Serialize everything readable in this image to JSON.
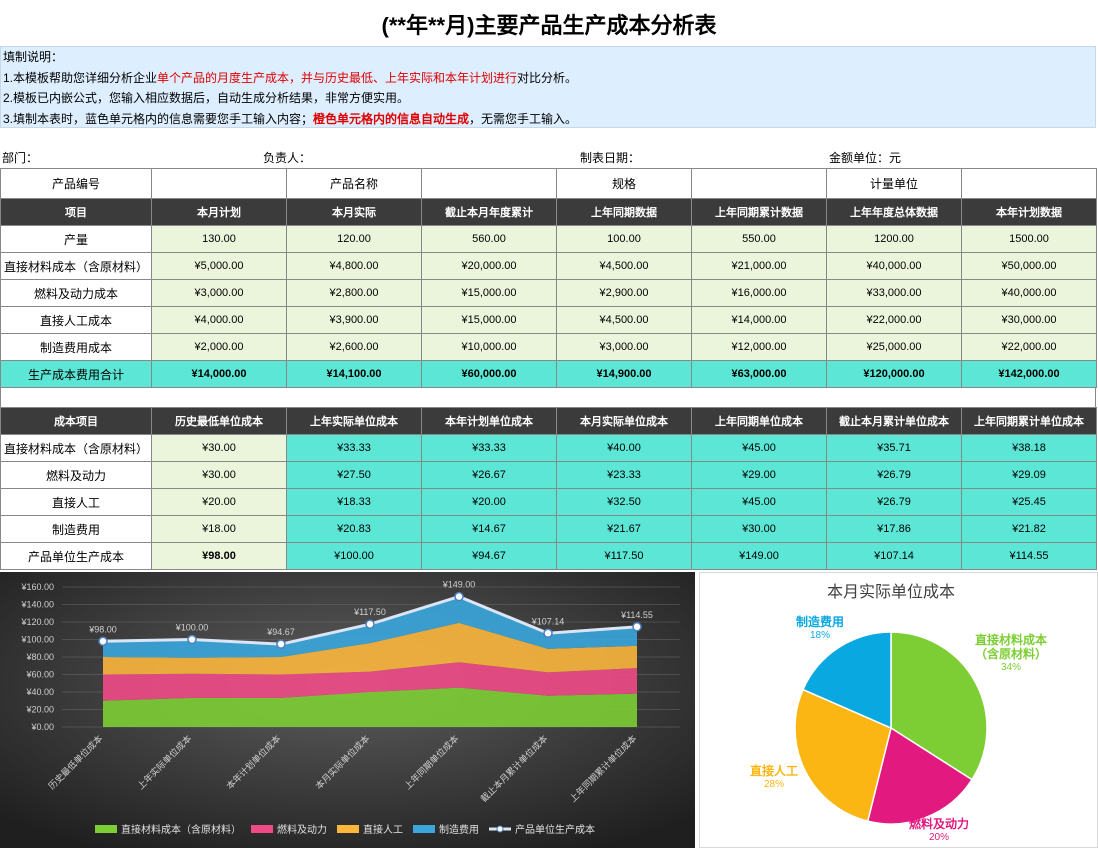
{
  "title": "(**年**月)主要产品生产成本分析表",
  "notes": {
    "heading": "填制说明：",
    "lines": [
      [
        {
          "text": "1.本模板帮助您详细分析企业"
        },
        {
          "text": "单个产品的月度生产成本，并与历史最低、上年实际和本年计划进行",
          "color": "#e00000"
        },
        {
          "text": "对比分析。"
        }
      ],
      [
        {
          "text": "2.模板已内嵌公式，您输入相应数据后，自动生成分析结果，非常方便实用。"
        }
      ],
      [
        {
          "text": "3.填制本表时，蓝色单元格内的信息需要您手工输入内容；"
        },
        {
          "text": "橙色单元格内的信息自动生成",
          "color": "#e00000",
          "bold": true
        },
        {
          "text": "，无需您手工输入。"
        }
      ]
    ]
  },
  "info": [
    "部门：",
    "负责人：",
    "制表日期：",
    "金额单位：元"
  ],
  "product_info": [
    "产品编号",
    "产品名称",
    "规格",
    "计量单位"
  ],
  "table1": {
    "header": [
      "项目",
      "本月计划",
      "本月实际",
      "截止本月年度累计",
      "上年同期数据",
      "上年同期累计数据",
      "上年年度总体数据",
      "本年计划数据"
    ],
    "rows": [
      [
        "产量",
        "130.00",
        "120.00",
        "560.00",
        "100.00",
        "550.00",
        "1200.00",
        "1500.00"
      ],
      [
        "直接材料成本（含原材料）",
        "¥5,000.00",
        "¥4,800.00",
        "¥20,000.00",
        "¥4,500.00",
        "¥21,000.00",
        "¥40,000.00",
        "¥50,000.00"
      ],
      [
        "燃料及动力成本",
        "¥3,000.00",
        "¥2,800.00",
        "¥15,000.00",
        "¥2,900.00",
        "¥16,000.00",
        "¥33,000.00",
        "¥40,000.00"
      ],
      [
        "直接人工成本",
        "¥4,000.00",
        "¥3,900.00",
        "¥15,000.00",
        "¥4,500.00",
        "¥14,000.00",
        "¥22,000.00",
        "¥30,000.00"
      ],
      [
        "制造费用成本",
        "¥2,000.00",
        "¥2,600.00",
        "¥10,000.00",
        "¥3,000.00",
        "¥12,000.00",
        "¥25,000.00",
        "¥22,000.00"
      ],
      [
        "生产成本费用合计",
        "¥14,000.00",
        "¥14,100.00",
        "¥60,000.00",
        "¥14,900.00",
        "¥63,000.00",
        "¥120,000.00",
        "¥142,000.00"
      ]
    ]
  },
  "table2": {
    "header": [
      "成本项目",
      "历史最低单位成本",
      "上年实际单位成本",
      "本年计划单位成本",
      "本月实际单位成本",
      "上年同期单位成本",
      "截止本月累计单位成本",
      "上年同期累计单位成本"
    ],
    "rows": [
      [
        "直接材料成本（含原材料）",
        "¥30.00",
        "¥33.33",
        "¥33.33",
        "¥40.00",
        "¥45.00",
        "¥35.71",
        "¥38.18"
      ],
      [
        "燃料及动力",
        "¥30.00",
        "¥27.50",
        "¥26.67",
        "¥23.33",
        "¥29.00",
        "¥26.79",
        "¥29.09"
      ],
      [
        "直接人工",
        "¥20.00",
        "¥18.33",
        "¥20.00",
        "¥32.50",
        "¥45.00",
        "¥26.79",
        "¥25.45"
      ],
      [
        "制造费用",
        "¥18.00",
        "¥20.83",
        "¥14.67",
        "¥21.67",
        "¥30.00",
        "¥17.86",
        "¥21.82"
      ],
      [
        "产品单位生产成本",
        "¥98.00",
        "¥100.00",
        "¥94.67",
        "¥117.50",
        "¥149.00",
        "¥107.14",
        "¥114.55"
      ]
    ]
  },
  "chart_data": [
    {
      "type": "stacked-area-line",
      "categories": [
        "历史最低单位成本",
        "上年实际单位成本",
        "本年计划单位成本",
        "本月实际单位成本",
        "上年同期单位成本",
        "截止本月累计单位成本",
        "上年同期累计单位成本"
      ],
      "series": [
        {
          "name": "直接材料成本（含原材料）",
          "color": "#7dce34",
          "values": [
            30,
            33.33,
            33.33,
            40,
            45,
            35.71,
            38.18
          ]
        },
        {
          "name": "燃料及动力",
          "color": "#ef4a86",
          "values": [
            30,
            27.5,
            26.67,
            23.33,
            29,
            26.79,
            29.09
          ]
        },
        {
          "name": "直接人工",
          "color": "#fbb63c",
          "values": [
            20,
            18.33,
            20,
            32.5,
            45,
            26.79,
            25.45
          ]
        },
        {
          "name": "制造费用",
          "color": "#3aa6dc",
          "values": [
            18,
            20.83,
            14.67,
            21.67,
            30,
            17.86,
            21.82
          ]
        },
        {
          "name": "产品单位生产成本",
          "type": "line",
          "color": "#dbe5f5",
          "values": [
            98,
            100,
            94.67,
            117.5,
            149,
            107.14,
            114.55
          ],
          "value_labels": [
            "¥98.00",
            "¥100.00",
            "¥94.67",
            "¥117.50",
            "¥149.00",
            "¥107.14",
            "¥114.55"
          ]
        }
      ],
      "ylim": [
        0,
        160
      ],
      "yticks": [
        {
          "value": 0,
          "label": "¥0.00"
        },
        {
          "value": 20,
          "label": "¥20.00"
        },
        {
          "value": 40,
          "label": "¥40.00"
        },
        {
          "value": 60,
          "label": "¥60.00"
        },
        {
          "value": 80,
          "label": "¥80.00"
        },
        {
          "value": 100,
          "label": "¥100.00"
        },
        {
          "value": 120,
          "label": "¥120.00"
        },
        {
          "value": 140,
          "label": "¥140.00"
        },
        {
          "value": 160,
          "label": "¥160.00"
        }
      ],
      "grid": true,
      "legend": "bottom"
    },
    {
      "type": "pie",
      "title": "本月实际单位成本",
      "categories": [
        "直接材料成本（含原材料）",
        "燃料及动力",
        "直接人工",
        "制造费用"
      ],
      "values": [
        40,
        23.33,
        32.5,
        21.67
      ],
      "value_labels": [
        "34%",
        "20%",
        "28%",
        "18%"
      ],
      "colors": [
        "#7dce34",
        "#e2197e",
        "#fbb614",
        "#0aa8e0"
      ]
    }
  ]
}
